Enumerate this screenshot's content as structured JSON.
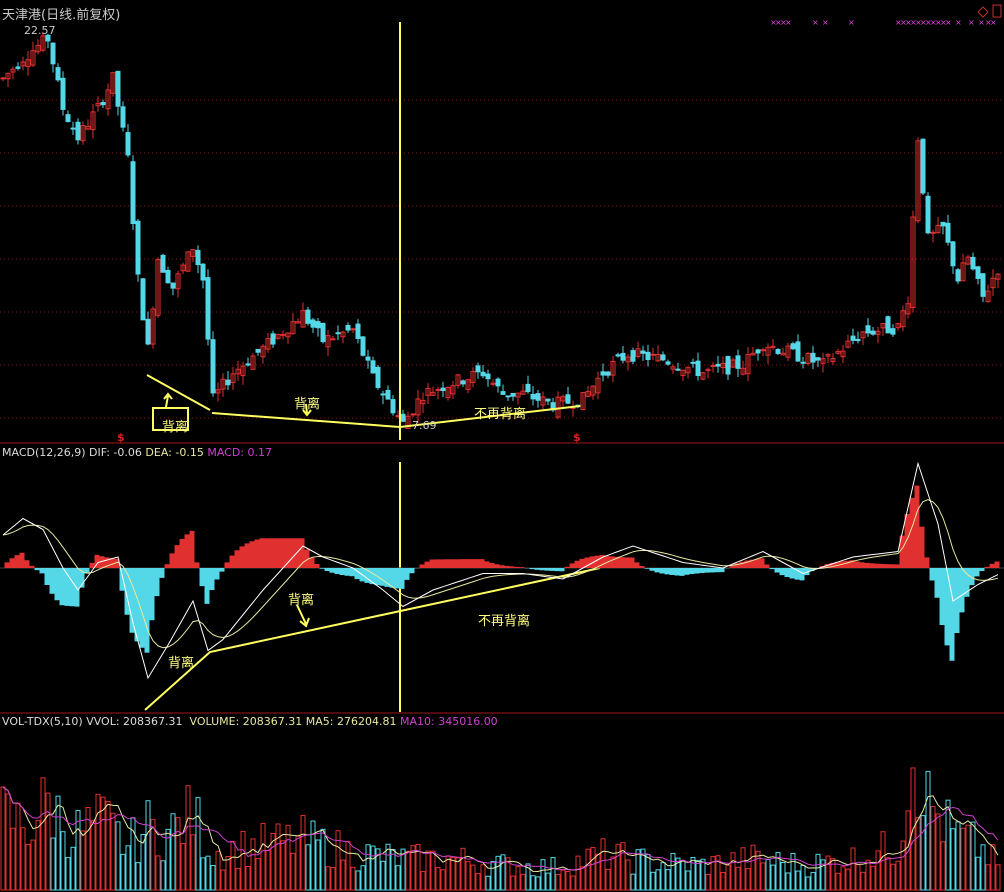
{
  "header": {
    "title": "天津港(日线.前复权)",
    "high_label": "22.57",
    "low_label": "7.69",
    "signal_marker": "$"
  },
  "macd_header": {
    "name": "MACD(12,26,9)",
    "dif": "DIF: -0.06",
    "dea": "DEA: -0.15",
    "macd": "MACD: 0.17"
  },
  "vol_header": {
    "name": "VOL-TDX(5,10)",
    "vvol": "VVOL: 208367.31",
    "volume": "VOLUME: 208367.31",
    "ma5": "MA5: 276204.81",
    "ma10": "MA10: 345016.00"
  },
  "annotations": {
    "main_divergence_1": "背离",
    "main_divergence_2": "背离",
    "main_no_divergence": "不再背离",
    "macd_divergence_1": "背离",
    "macd_divergence_2": "背离",
    "macd_no_divergence": "不再背离"
  },
  "colors": {
    "up": "#e03030",
    "down": "#54d8e8",
    "grid": "#901010",
    "annotation": "#ffff60",
    "dif": "#ffffff",
    "dea": "#e8e8a0",
    "ma10": "#d040d0",
    "markers": "#e040e0"
  },
  "chart_data": [
    {
      "type": "candlestick",
      "title": "天津港(日线.前复权)",
      "ylim": [
        7.0,
        23.0
      ],
      "grid": true,
      "close_keypoints": [
        [
          0,
          20.6
        ],
        [
          4,
          21.4
        ],
        [
          9,
          22.1
        ],
        [
          12,
          19.5
        ],
        [
          15,
          18.4
        ],
        [
          19,
          19.5
        ],
        [
          22,
          20.6
        ],
        [
          25,
          17.6
        ],
        [
          27,
          13.1
        ],
        [
          29,
          10.5
        ],
        [
          31,
          13.9
        ],
        [
          34,
          12.8
        ],
        [
          38,
          14.3
        ],
        [
          40,
          13.1
        ],
        [
          42,
          8.6
        ],
        [
          46,
          9.6
        ],
        [
          52,
          10.5
        ],
        [
          60,
          11.8
        ],
        [
          64,
          10.8
        ],
        [
          70,
          11.2
        ],
        [
          74,
          9.4
        ],
        [
          80,
          7.69
        ],
        [
          84,
          8.8
        ],
        [
          88,
          9.1
        ],
        [
          96,
          9.6
        ],
        [
          100,
          8.8
        ],
        [
          104,
          8.8
        ],
        [
          110,
          8.4
        ],
        [
          116,
          8.6
        ],
        [
          120,
          9.6
        ],
        [
          125,
          10.3
        ],
        [
          132,
          10.1
        ],
        [
          140,
          9.6
        ],
        [
          148,
          9.9
        ],
        [
          152,
          10.7
        ],
        [
          158,
          10.3
        ],
        [
          164,
          9.9
        ],
        [
          172,
          11.1
        ],
        [
          179,
          11.3
        ],
        [
          181,
          12.4
        ],
        [
          183,
          18.4
        ],
        [
          185,
          14.6
        ],
        [
          188,
          15.0
        ],
        [
          191,
          13.1
        ],
        [
          193,
          13.9
        ],
        [
          196,
          12.4
        ],
        [
          199,
          13.5
        ]
      ],
      "high": 22.57,
      "low": 7.69
    },
    {
      "type": "line",
      "title": "MACD(12,26,9)",
      "series": [
        {
          "name": "DIF",
          "keypoints": [
            [
              0,
              0.3
            ],
            [
              4,
              0.45
            ],
            [
              8,
              0.35
            ],
            [
              12,
              0.0
            ],
            [
              15,
              -0.2
            ],
            [
              19,
              0.05
            ],
            [
              23,
              0.1
            ],
            [
              26,
              -0.5
            ],
            [
              29,
              -1.0
            ],
            [
              33,
              -0.7
            ],
            [
              38,
              -0.3
            ],
            [
              41,
              -0.75
            ],
            [
              44,
              -0.65
            ],
            [
              52,
              -0.2
            ],
            [
              60,
              0.2
            ],
            [
              64,
              0.1
            ],
            [
              70,
              0.0
            ],
            [
              76,
              -0.2
            ],
            [
              80,
              -0.35
            ],
            [
              86,
              -0.2
            ],
            [
              96,
              -0.05
            ],
            [
              104,
              -0.05
            ],
            [
              112,
              -0.1
            ],
            [
              120,
              0.1
            ],
            [
              126,
              0.2
            ],
            [
              136,
              0.05
            ],
            [
              144,
              0.0
            ],
            [
              152,
              0.15
            ],
            [
              160,
              -0.05
            ],
            [
              170,
              0.1
            ],
            [
              179,
              0.15
            ],
            [
              183,
              0.95
            ],
            [
              187,
              0.4
            ],
            [
              190,
              -0.3
            ],
            [
              195,
              -0.15
            ],
            [
              199,
              -0.06
            ]
          ]
        },
        {
          "name": "DEA"
        },
        {
          "name": "MACD"
        }
      ],
      "ylim": [
        -1.1,
        1.0
      ]
    },
    {
      "type": "bar",
      "title": "VOL-TDX(5,10)",
      "keypoints": [
        [
          0,
          600000
        ],
        [
          5,
          500000
        ],
        [
          9,
          700000
        ],
        [
          14,
          450000
        ],
        [
          20,
          550000
        ],
        [
          25,
          350000
        ],
        [
          29,
          500000
        ],
        [
          33,
          450000
        ],
        [
          38,
          600000
        ],
        [
          42,
          300000
        ],
        [
          50,
          350000
        ],
        [
          60,
          400000
        ],
        [
          70,
          300000
        ],
        [
          80,
          250000
        ],
        [
          90,
          250000
        ],
        [
          100,
          200000
        ],
        [
          110,
          180000
        ],
        [
          120,
          280000
        ],
        [
          130,
          220000
        ],
        [
          140,
          200000
        ],
        [
          150,
          250000
        ],
        [
          160,
          200000
        ],
        [
          170,
          250000
        ],
        [
          179,
          350000
        ],
        [
          182,
          1200000
        ],
        [
          185,
          700000
        ],
        [
          190,
          450000
        ],
        [
          195,
          350000
        ],
        [
          199,
          208367
        ]
      ],
      "ylim": [
        0,
        1300000
      ]
    }
  ]
}
